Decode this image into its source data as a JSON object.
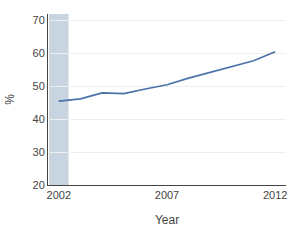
{
  "chart_data": {
    "type": "line",
    "x": [
      2002,
      2003,
      2004,
      2005,
      2006,
      2007,
      2008,
      2009,
      2010,
      2011,
      2012
    ],
    "values": [
      45.5,
      46.2,
      48.0,
      47.8,
      49.2,
      50.5,
      52.5,
      54.2,
      56.0,
      57.8,
      60.5
    ],
    "color": "#4a72a8",
    "xlabel": "Year",
    "ylabel": "%",
    "xlim": [
      2001.5,
      2012.5
    ],
    "xticks": [
      2002,
      2007,
      2012
    ],
    "ylim": [
      20,
      72
    ],
    "yticks": [
      20,
      30,
      40,
      50,
      60,
      70
    ],
    "grid": true,
    "span": [
      2001.55,
      2002.45
    ],
    "span_color": "#c8d4e0"
  }
}
